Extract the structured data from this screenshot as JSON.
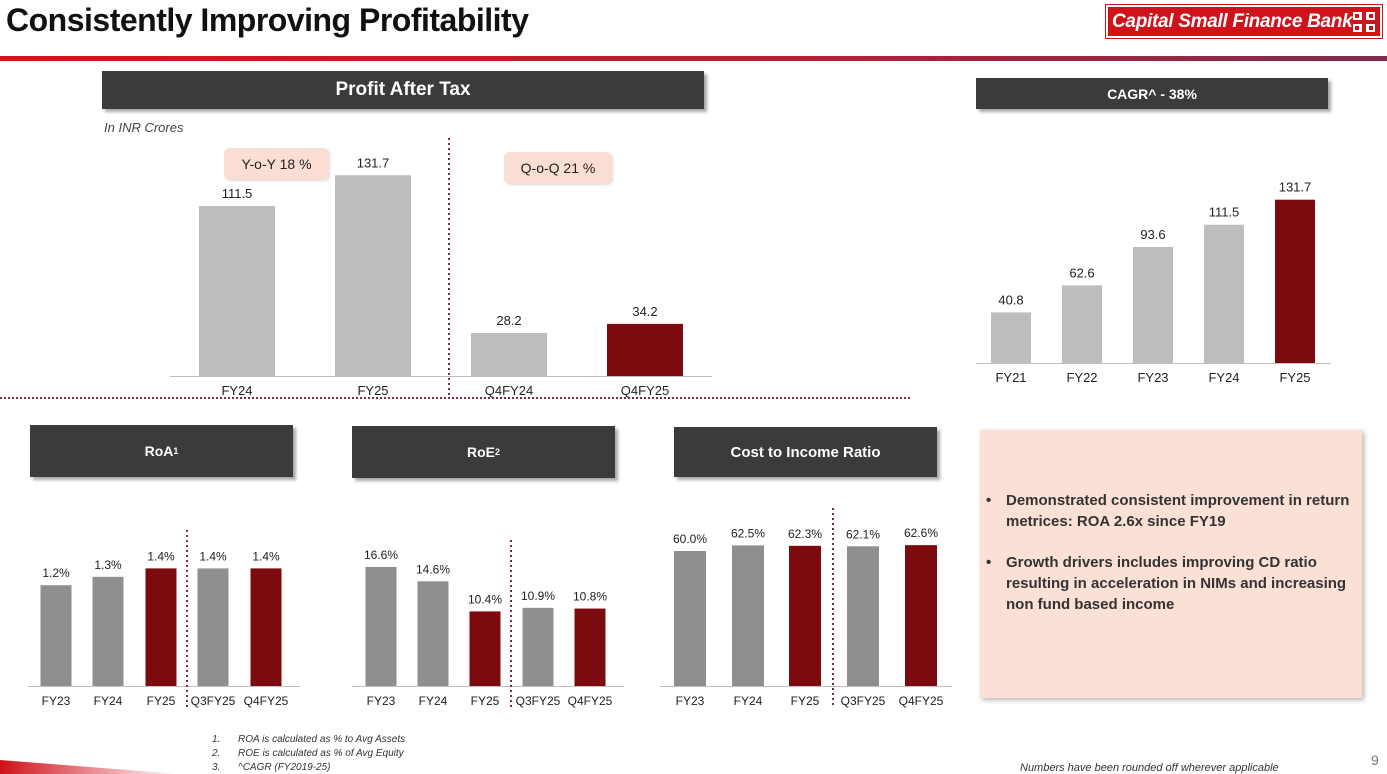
{
  "page": {
    "title": "Consistently Improving Profitability",
    "logo_text": "Capital Small Finance Bank",
    "page_number": "9",
    "rounding_note": "Numbers have been rounded off wherever applicable",
    "footnotes": [
      {
        "num": "1.",
        "text": "ROA is calculated as  %  to Avg Assets"
      },
      {
        "num": "2.",
        "text": "ROE is calculated as % of Avg Equity"
      },
      {
        "num": "3.",
        "text": "^CAGR (FY2019-25)"
      }
    ],
    "colors": {
      "accent": "#d0121b",
      "highlight_bar": "#7d0a0e",
      "grey_bar": "#bdbdbd",
      "dark_grey_bar": "#8f8f8f",
      "header_bg": "#3b3b3b",
      "callout_bg": "#fbded3"
    }
  },
  "commentary": {
    "points": [
      "Demonstrated consistent improvement in return metrices: ROA 2.6x since FY19",
      "Growth drivers includes improving CD ratio resulting in acceleration in NIMs and increasing non fund based income"
    ]
  },
  "chart_data": [
    {
      "type": "bar",
      "title": "Profit After Tax",
      "subtitle": "In INR Crores",
      "categories": [
        "FY24",
        "FY25",
        "Q4FY24",
        "Q4FY25"
      ],
      "values": [
        111.5,
        131.7,
        28.2,
        34.2
      ],
      "labels": [
        "111.5",
        "131.7",
        "28.2",
        "34.2"
      ],
      "highlight": [
        false,
        false,
        false,
        true
      ],
      "annotations": [
        "Y-o-Y 18 %",
        "Q-o-Q 21 %"
      ],
      "ylim": [
        0,
        145
      ],
      "separator_after_index": 1
    },
    {
      "type": "bar",
      "title": "CAGR^ - 38%",
      "categories": [
        "FY21",
        "FY22",
        "FY23",
        "FY24",
        "FY25"
      ],
      "values": [
        40.8,
        62.6,
        93.6,
        111.5,
        131.7
      ],
      "labels": [
        "40.8",
        "62.6",
        "93.6",
        "111.5",
        "131.7"
      ],
      "highlight": [
        false,
        false,
        false,
        false,
        true
      ],
      "ylim": [
        0,
        150
      ]
    },
    {
      "type": "bar",
      "title": "RoA",
      "title_sup": "1",
      "categories": [
        "FY23",
        "FY24",
        "FY25",
        "Q3FY25",
        "Q4FY25"
      ],
      "values": [
        1.2,
        1.3,
        1.4,
        1.4,
        1.4
      ],
      "labels": [
        "1.2%",
        "1.3%",
        "1.4%",
        "1.4%",
        "1.4%"
      ],
      "highlight": [
        false,
        false,
        true,
        false,
        true
      ],
      "ylim": [
        0,
        1.75
      ],
      "separator_after_index": 2
    },
    {
      "type": "bar",
      "title": "RoE",
      "title_sup": "2",
      "categories": [
        "FY23",
        "FY24",
        "FY25",
        "Q3FY25",
        "Q4FY25"
      ],
      "values": [
        16.6,
        14.6,
        10.4,
        10.9,
        10.8
      ],
      "labels": [
        "16.6%",
        "14.6%",
        "10.4%",
        "10.9%",
        "10.8%"
      ],
      "highlight": [
        false,
        false,
        true,
        false,
        true
      ],
      "ylim": [
        0,
        20.5
      ],
      "separator_after_index": 2
    },
    {
      "type": "bar",
      "title": "Cost to Income Ratio",
      "categories": [
        "FY23",
        "FY24",
        "FY25",
        "Q3FY25",
        "Q4FY25"
      ],
      "values": [
        60.0,
        62.5,
        62.3,
        62.1,
        62.6
      ],
      "labels": [
        "60.0%",
        "62.5%",
        "62.3%",
        "62.1%",
        "62.6%"
      ],
      "highlight": [
        false,
        false,
        true,
        false,
        true
      ],
      "ylim": [
        0,
        76
      ],
      "separator_after_index": 2
    }
  ]
}
